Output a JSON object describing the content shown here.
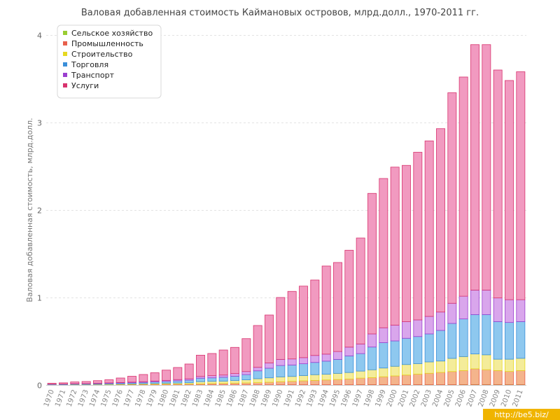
{
  "chart_data": {
    "type": "bar",
    "stacked": true,
    "title": "Валовая добавленная стоимость Каймановых островов, млрд.долл., 1970-2011 гг.",
    "ylabel": "Валовая добавленная стоимость, млрд.долл.",
    "xlabel": "",
    "ylim": [
      0,
      4
    ],
    "yticks": [
      "0",
      "1",
      "2",
      "3",
      "4"
    ],
    "grid": true,
    "legend_position": "top-left",
    "categories": [
      "1970",
      "1971",
      "1972",
      "1973",
      "1974",
      "1975",
      "1976",
      "1977",
      "1978",
      "1979",
      "1980",
      "1981",
      "1982",
      "1983",
      "1984",
      "1985",
      "1986",
      "1987",
      "1988",
      "1989",
      "1990",
      "1991",
      "1992",
      "1993",
      "1994",
      "1995",
      "1996",
      "1997",
      "1998",
      "1999",
      "2000",
      "2001",
      "2002",
      "2003",
      "2004",
      "2005",
      "2006",
      "2007",
      "2008",
      "2009",
      "2010",
      "2011"
    ],
    "series": [
      {
        "name": "Сельское хозяйство",
        "color": "#9acd32",
        "fill": "#c8e07a",
        "values": [
          0.001,
          0.001,
          0.001,
          0.001,
          0.001,
          0.001,
          0.001,
          0.001,
          0.001,
          0.001,
          0.001,
          0.001,
          0.001,
          0.001,
          0.002,
          0.002,
          0.002,
          0.002,
          0.002,
          0.002,
          0.003,
          0.003,
          0.003,
          0.003,
          0.003,
          0.003,
          0.003,
          0.004,
          0.004,
          0.004,
          0.004,
          0.004,
          0.004,
          0.004,
          0.004,
          0.004,
          0.005,
          0.005,
          0.005,
          0.005,
          0.005,
          0.005
        ]
      },
      {
        "name": "Промышленность",
        "color": "#e8604c",
        "fill": "#f4b48c",
        "values": [
          0.001,
          0.001,
          0.002,
          0.002,
          0.003,
          0.003,
          0.004,
          0.005,
          0.006,
          0.007,
          0.008,
          0.009,
          0.01,
          0.012,
          0.015,
          0.017,
          0.019,
          0.022,
          0.025,
          0.03,
          0.035,
          0.04,
          0.045,
          0.05,
          0.055,
          0.06,
          0.065,
          0.075,
          0.08,
          0.09,
          0.1,
          0.11,
          0.12,
          0.13,
          0.14,
          0.15,
          0.16,
          0.18,
          0.17,
          0.16,
          0.15,
          0.16
        ]
      },
      {
        "name": "Строительство",
        "color": "#e6d820",
        "fill": "#f4ec9a",
        "values": [
          0.002,
          0.002,
          0.003,
          0.003,
          0.004,
          0.005,
          0.006,
          0.007,
          0.008,
          0.01,
          0.012,
          0.013,
          0.015,
          0.025,
          0.025,
          0.025,
          0.03,
          0.035,
          0.045,
          0.05,
          0.055,
          0.055,
          0.06,
          0.065,
          0.065,
          0.07,
          0.075,
          0.08,
          0.09,
          0.1,
          0.11,
          0.12,
          0.12,
          0.13,
          0.13,
          0.15,
          0.16,
          0.17,
          0.17,
          0.13,
          0.14,
          0.14
        ]
      },
      {
        "name": "Торговля",
        "color": "#3a8fd9",
        "fill": "#8ec8ef",
        "values": [
          0.004,
          0.005,
          0.006,
          0.007,
          0.008,
          0.01,
          0.012,
          0.013,
          0.015,
          0.018,
          0.02,
          0.025,
          0.03,
          0.04,
          0.04,
          0.045,
          0.05,
          0.06,
          0.09,
          0.11,
          0.13,
          0.13,
          0.135,
          0.14,
          0.15,
          0.16,
          0.19,
          0.2,
          0.26,
          0.29,
          0.29,
          0.3,
          0.31,
          0.32,
          0.35,
          0.4,
          0.43,
          0.45,
          0.46,
          0.43,
          0.42,
          0.42
        ]
      },
      {
        "name": "Транспорт",
        "color": "#9b3fcf",
        "fill": "#d9a6ec",
        "values": [
          0.002,
          0.002,
          0.003,
          0.003,
          0.004,
          0.005,
          0.006,
          0.007,
          0.008,
          0.01,
          0.012,
          0.014,
          0.015,
          0.02,
          0.025,
          0.025,
          0.03,
          0.035,
          0.04,
          0.06,
          0.07,
          0.07,
          0.07,
          0.08,
          0.08,
          0.09,
          0.1,
          0.11,
          0.15,
          0.17,
          0.18,
          0.19,
          0.19,
          0.2,
          0.21,
          0.23,
          0.26,
          0.28,
          0.28,
          0.27,
          0.26,
          0.25
        ]
      },
      {
        "name": "Услуги",
        "color": "#d8336e",
        "fill": "#f19ac0",
        "values": [
          0.01,
          0.014,
          0.02,
          0.024,
          0.03,
          0.036,
          0.051,
          0.067,
          0.082,
          0.094,
          0.117,
          0.138,
          0.169,
          0.243,
          0.253,
          0.286,
          0.299,
          0.376,
          0.478,
          0.548,
          0.707,
          0.772,
          0.817,
          0.862,
          1.007,
          1.017,
          1.107,
          1.211,
          1.606,
          1.706,
          1.806,
          1.786,
          1.916,
          2.006,
          2.096,
          2.406,
          2.505,
          2.805,
          2.805,
          2.605,
          2.505,
          2.605
        ]
      }
    ]
  },
  "watermark": "http://be5.biz/"
}
